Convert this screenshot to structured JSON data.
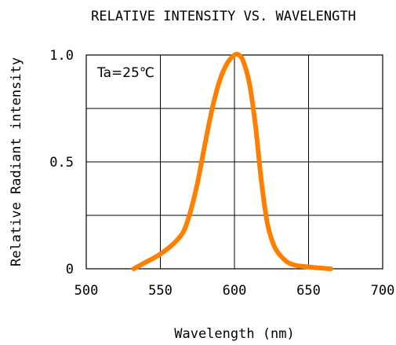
{
  "chart_data": {
    "type": "line",
    "title": "RELATIVE INTENSITY VS. WAVELENGTH",
    "xlabel": "Wavelength (nm)",
    "ylabel": "Relative Radiant intensity",
    "annotation": "Ta=25℃",
    "xlim": [
      500,
      700
    ],
    "ylim": [
      0,
      1.0
    ],
    "x_ticks": [
      500,
      550,
      600,
      650,
      700
    ],
    "x_tick_labels": [
      "500",
      "550",
      "600",
      "650",
      "700"
    ],
    "y_ticks": [
      0,
      0.5,
      1.0
    ],
    "y_tick_labels": [
      "0",
      "0.5",
      "1.0"
    ],
    "grid": true,
    "series": [
      {
        "color": "#FF8000",
        "x": [
          532,
          540,
          548,
          556,
          562,
          566,
          570,
          575,
          580,
          585,
          590,
          595,
          600,
          603,
          606,
          610,
          614,
          618,
          622,
          626,
          630,
          636,
          642,
          648,
          655,
          665
        ],
        "y": [
          0.0,
          0.03,
          0.06,
          0.1,
          0.14,
          0.18,
          0.26,
          0.4,
          0.58,
          0.75,
          0.88,
          0.96,
          1.0,
          1.0,
          0.97,
          0.87,
          0.68,
          0.42,
          0.22,
          0.12,
          0.07,
          0.03,
          0.015,
          0.01,
          0.005,
          0.0
        ]
      }
    ]
  }
}
